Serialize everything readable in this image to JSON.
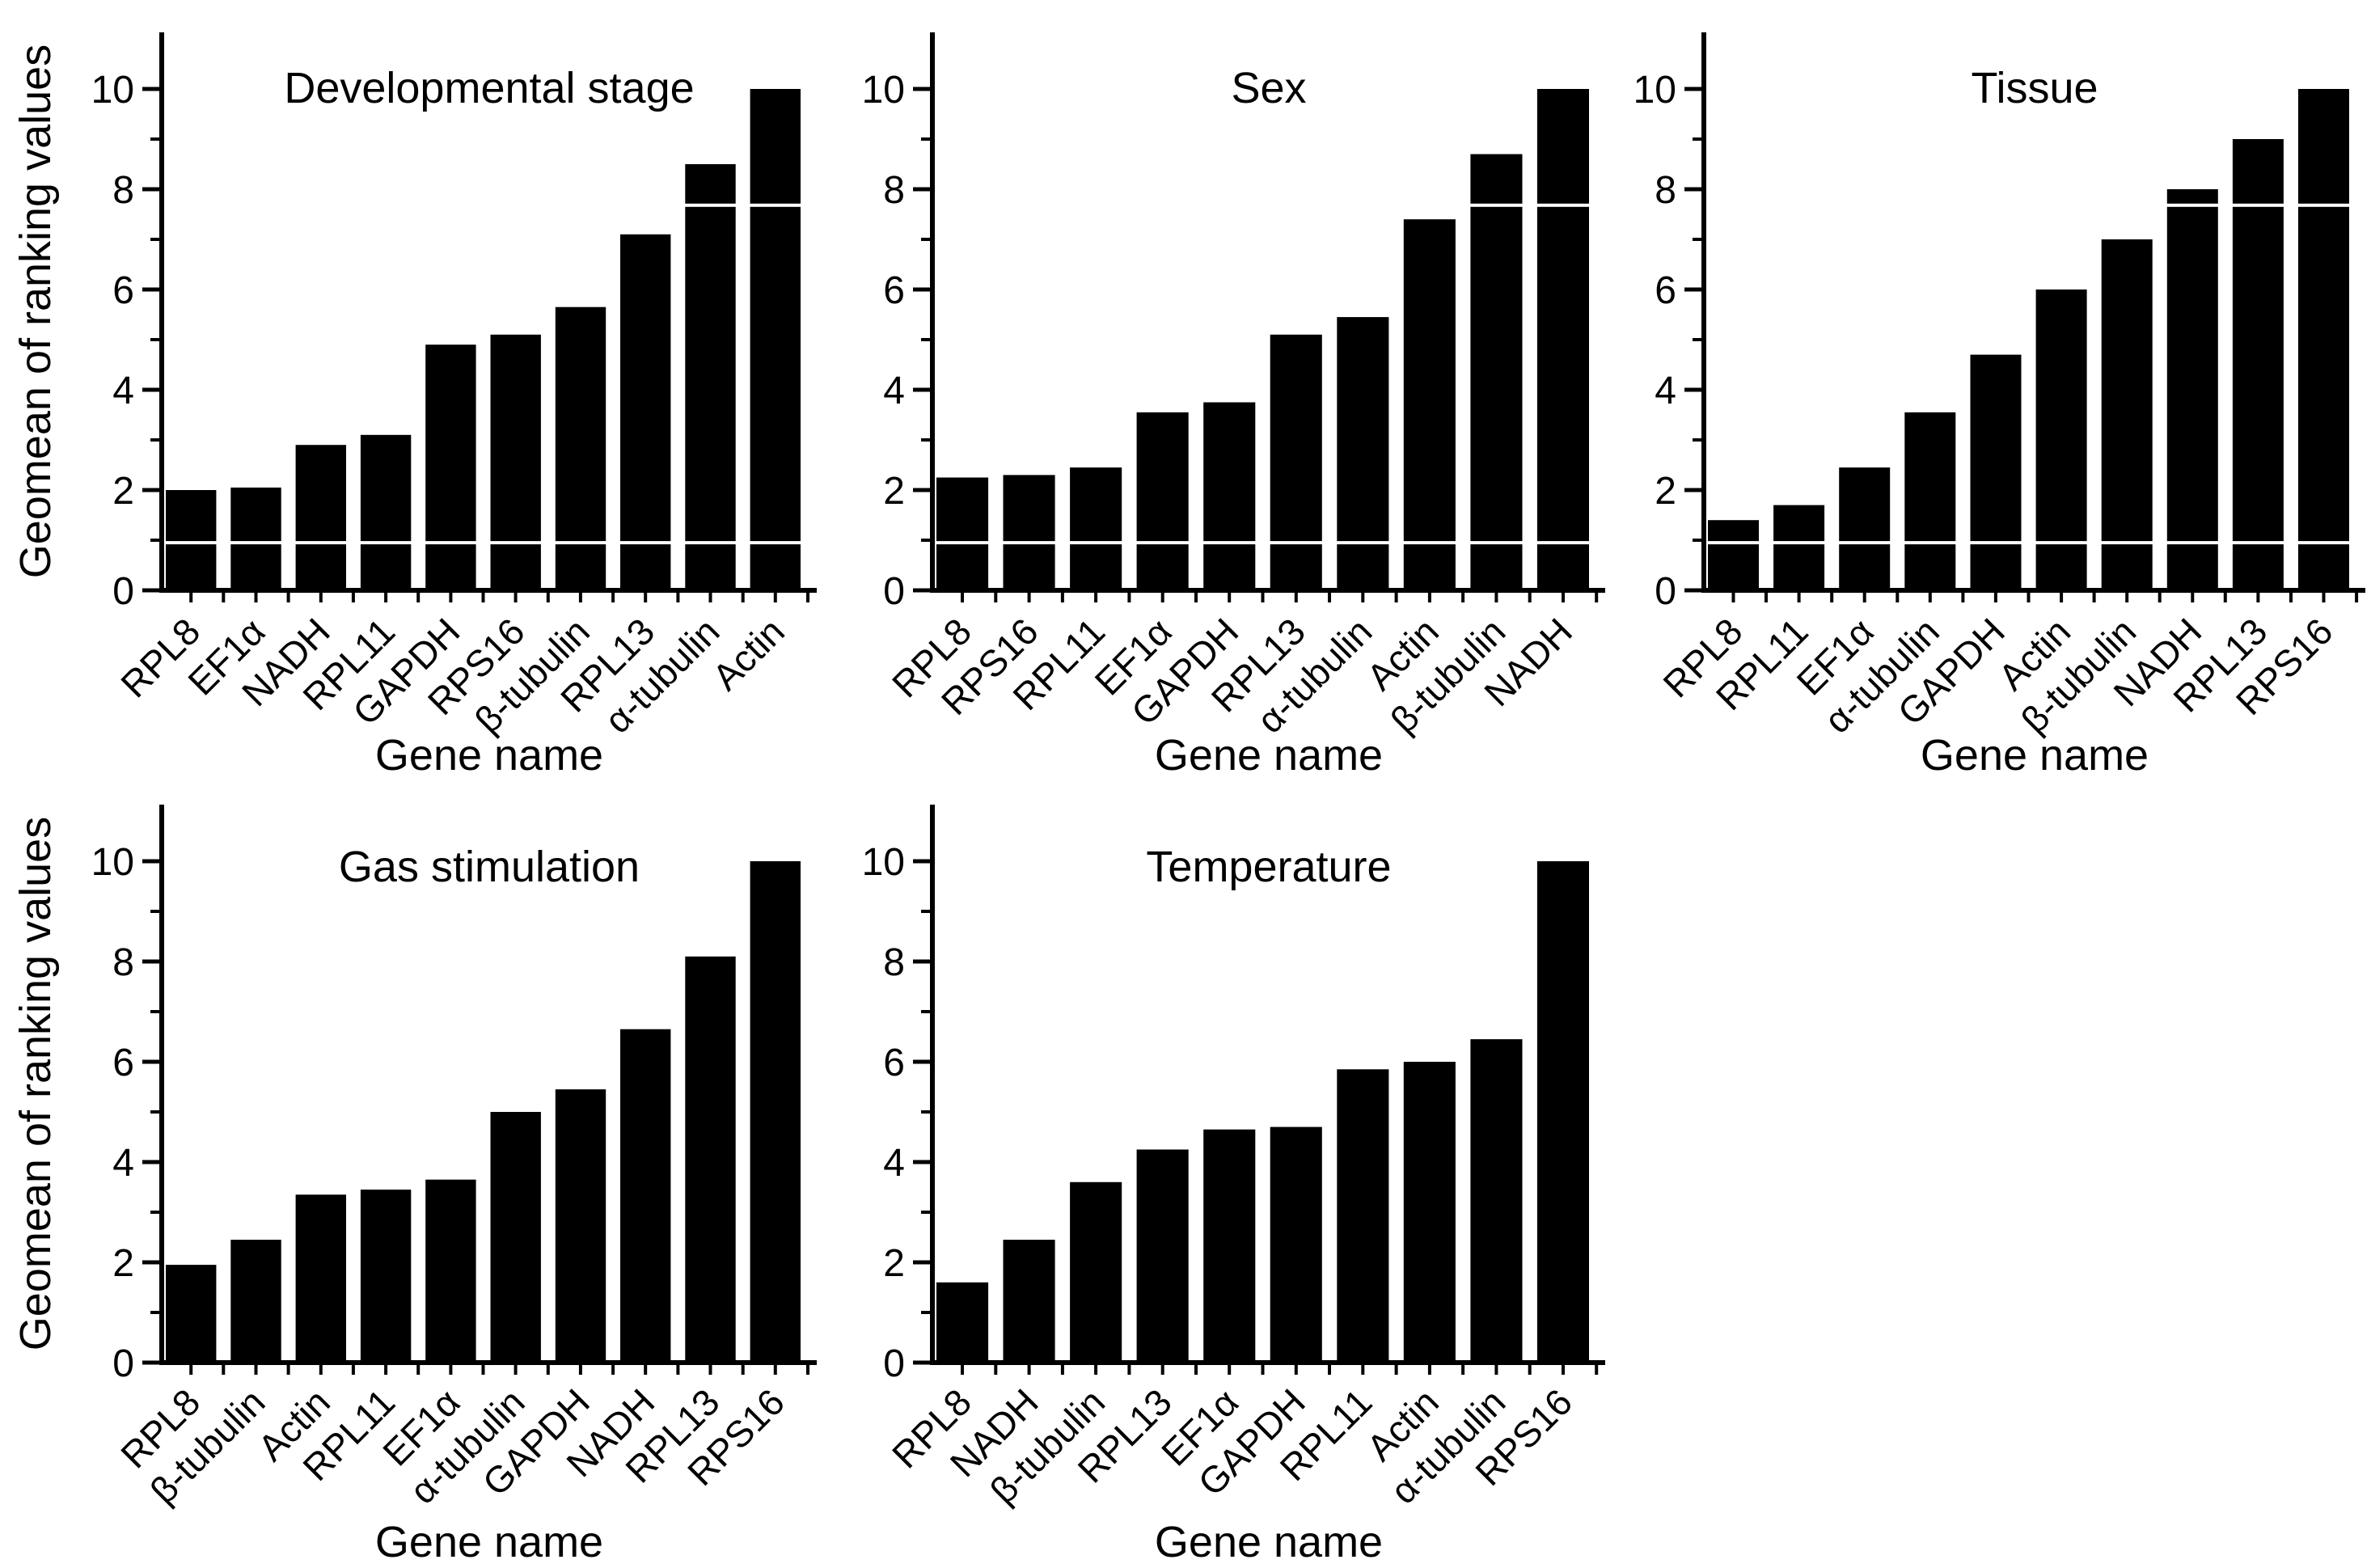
{
  "figure": {
    "background_color": "#ffffff",
    "bar_color": "#000000",
    "axis_color": "#000000",
    "seam_line_color": "#ffffff",
    "y_axis_label": "Geomean of ranking values",
    "x_axis_label": "Gene name",
    "y_tick_labels": [
      "0",
      "2",
      "4",
      "6",
      "8",
      "10"
    ]
  },
  "chart_data": [
    {
      "type": "bar",
      "title": "Developmental stage",
      "position": {
        "row": 1,
        "col": 1
      },
      "show_y_axis_title": true,
      "ylabel": "Geomean of ranking values",
      "xlabel": "Gene name",
      "categories": [
        "RPL8",
        "EF1α",
        "NADH",
        "RPL11",
        "GAPDH",
        "RPS16",
        "β-tubulin",
        "RPL13",
        "α-tubulin",
        "Actin"
      ],
      "values": [
        2.0,
        2.05,
        2.9,
        3.1,
        4.9,
        5.1,
        5.65,
        7.1,
        8.5,
        10.0
      ],
      "ylim": [
        0,
        11
      ],
      "yticks": [
        0,
        2,
        4,
        6,
        8,
        10
      ],
      "minor_yticks": [
        1,
        3,
        5,
        7,
        9
      ],
      "grid": false,
      "legend": "none",
      "seam_lines": [
        0.95,
        7.68
      ]
    },
    {
      "type": "bar",
      "title": "Sex",
      "position": {
        "row": 1,
        "col": 2
      },
      "show_y_axis_title": false,
      "ylabel": "Geomean of ranking values",
      "xlabel": "Gene name",
      "categories": [
        "RPL8",
        "RPS16",
        "RPL11",
        "EF1α",
        "GAPDH",
        "RPL13",
        "α-tubulin",
        "Actin",
        "β-tubulin",
        "NADH"
      ],
      "values": [
        2.25,
        2.3,
        2.45,
        3.55,
        3.75,
        5.1,
        5.45,
        7.4,
        8.7,
        10.0
      ],
      "ylim": [
        0,
        11
      ],
      "yticks": [
        0,
        2,
        4,
        6,
        8,
        10
      ],
      "minor_yticks": [
        1,
        3,
        5,
        7,
        9
      ],
      "grid": false,
      "legend": "none",
      "seam_lines": [
        0.95,
        7.68
      ]
    },
    {
      "type": "bar",
      "title": "Tissue",
      "position": {
        "row": 1,
        "col": 3
      },
      "show_y_axis_title": false,
      "ylabel": "Geomean of ranking values",
      "xlabel": "Gene name",
      "categories": [
        "RPL8",
        "RPL11",
        "EF1α",
        "α-tubulin",
        "GAPDH",
        "Actin",
        "β-tubulin",
        "NADH",
        "RPL13",
        "RPS16"
      ],
      "values": [
        1.4,
        1.7,
        2.45,
        3.55,
        4.7,
        6.0,
        7.0,
        8.0,
        9.0,
        10.0
      ],
      "ylim": [
        0,
        11
      ],
      "yticks": [
        0,
        2,
        4,
        6,
        8,
        10
      ],
      "minor_yticks": [
        1,
        3,
        5,
        7,
        9
      ],
      "grid": false,
      "legend": "none",
      "seam_lines": [
        0.95,
        7.68
      ]
    },
    {
      "type": "bar",
      "title": "Gas stimulation",
      "position": {
        "row": 2,
        "col": 1
      },
      "show_y_axis_title": true,
      "ylabel": "Geomean of ranking values",
      "xlabel": "Gene name",
      "categories": [
        "RPL8",
        "β-tubulin",
        "Actin",
        "RPL11",
        "EF1α",
        "α-tubulin",
        "GAPDH",
        "NADH",
        "RPL13",
        "RPS16"
      ],
      "values": [
        1.95,
        2.45,
        3.35,
        3.45,
        3.65,
        5.0,
        5.45,
        6.65,
        8.1,
        10.0
      ],
      "ylim": [
        0,
        11
      ],
      "yticks": [
        0,
        2,
        4,
        6,
        8,
        10
      ],
      "minor_yticks": [
        1,
        3,
        5,
        7,
        9
      ],
      "grid": false,
      "legend": "none",
      "seam_lines": []
    },
    {
      "type": "bar",
      "title": "Temperature",
      "position": {
        "row": 2,
        "col": 2
      },
      "show_y_axis_title": false,
      "ylabel": "Geomean of ranking values",
      "xlabel": "Gene name",
      "categories": [
        "RPL8",
        "NADH",
        "β-tubulin",
        "RPL13",
        "EF1α",
        "GAPDH",
        "RPL11",
        "Actin",
        "α-tubulin",
        "RPS16"
      ],
      "values": [
        1.6,
        2.45,
        3.6,
        4.25,
        4.65,
        4.7,
        5.85,
        6.0,
        6.45,
        10.0
      ],
      "ylim": [
        0,
        11
      ],
      "yticks": [
        0,
        2,
        4,
        6,
        8,
        10
      ],
      "minor_yticks": [
        1,
        3,
        5,
        7,
        9
      ],
      "grid": false,
      "legend": "none",
      "seam_lines": []
    }
  ]
}
